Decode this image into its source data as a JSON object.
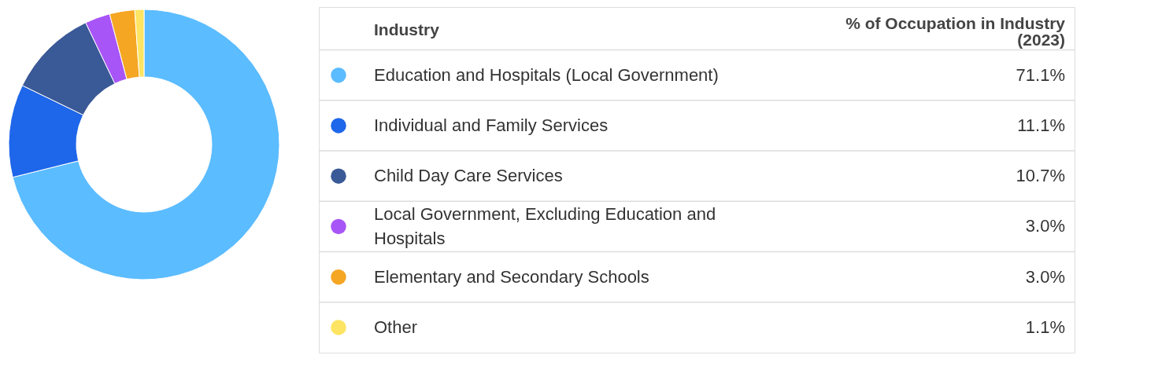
{
  "chart_data": {
    "type": "donut",
    "legend_title": "Industry",
    "ylabel": "% of Occupation in Industry (2023)",
    "categories": [
      "Education and Hospitals (Local Government)",
      "Individual and Family Services",
      "Child Day Care Services",
      "Local Government, Excluding Education and Hospitals",
      "Elementary and Secondary Schools",
      "Other"
    ],
    "values": [
      71.1,
      11.1,
      10.7,
      3.0,
      3.0,
      1.1
    ],
    "value_labels": [
      "71.1%",
      "11.1%",
      "10.7%",
      "3.0%",
      "3.0%",
      "1.1%"
    ],
    "colors": [
      "#5bbcff",
      "#1e66ea",
      "#3a5997",
      "#a855f7",
      "#f5a623",
      "#fde462"
    ],
    "legend": "right"
  }
}
